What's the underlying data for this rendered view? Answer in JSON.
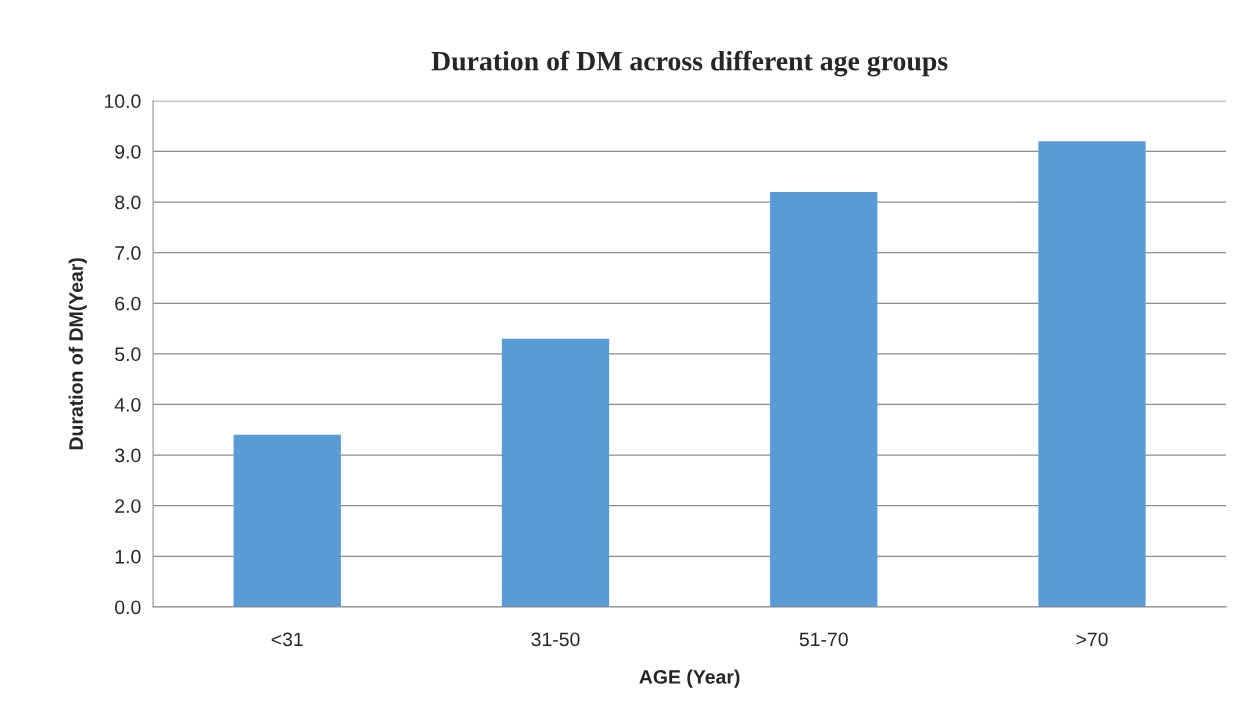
{
  "chart_data": {
    "type": "bar",
    "title": "Duration of DM across different age groups",
    "xlabel": "AGE (Year)",
    "ylabel": "Duration of DM(Year)",
    "categories": [
      "<31",
      "31-50",
      "51-70",
      ">70"
    ],
    "values": [
      3.4,
      5.3,
      8.2,
      9.2
    ],
    "color": "#5b9bd5",
    "ylim": [
      0,
      10
    ],
    "yticks": [
      {
        "value": 0,
        "label": "0.0"
      },
      {
        "value": 1,
        "label": "1.0"
      },
      {
        "value": 2,
        "label": "2.0"
      },
      {
        "value": 3,
        "label": "3.0"
      },
      {
        "value": 4,
        "label": "4.0"
      },
      {
        "value": 5,
        "label": "5.0"
      },
      {
        "value": 6,
        "label": "6.0"
      },
      {
        "value": 7,
        "label": "7.0"
      },
      {
        "value": 8,
        "label": "8.0"
      },
      {
        "value": 9,
        "label": "9.0"
      },
      {
        "value": 10,
        "label": "10.0"
      }
    ],
    "grid": "y"
  }
}
